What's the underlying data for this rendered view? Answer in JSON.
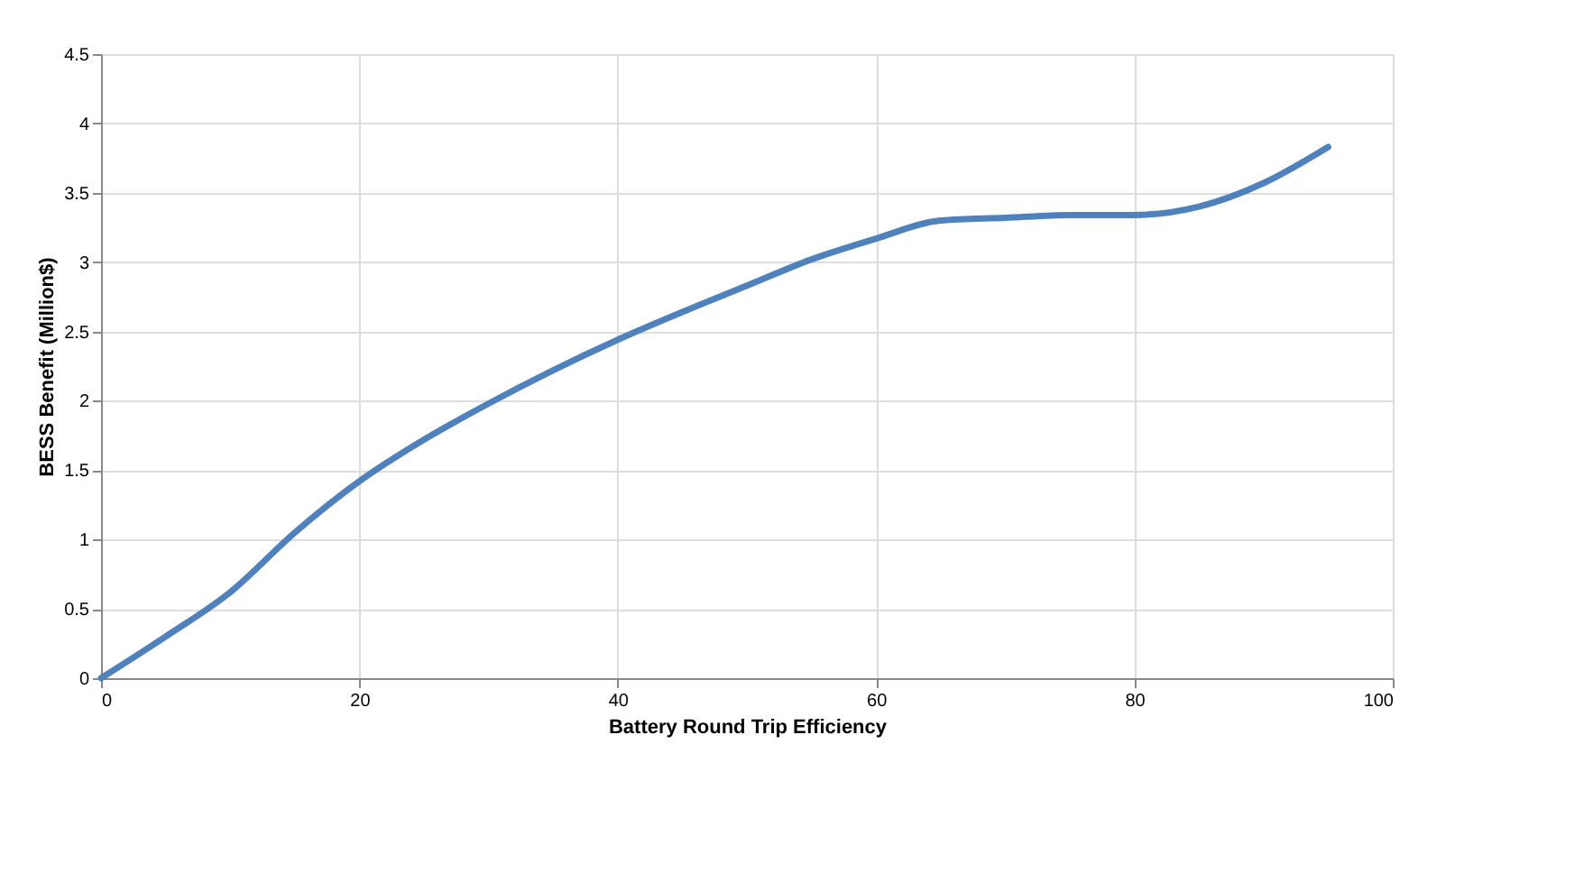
{
  "chart_data": {
    "type": "line",
    "xlabel": "Battery Round Trip Efficiency",
    "ylabel": "BESS Benefit (Million$)",
    "x": [
      0,
      5,
      10,
      15,
      20,
      25,
      30,
      35,
      40,
      45,
      50,
      55,
      60,
      65,
      70,
      75,
      80,
      85,
      90,
      95
    ],
    "series": [
      {
        "color": "#4f81bd",
        "values": [
          0,
          0.3,
          0.62,
          1.05,
          1.42,
          1.72,
          1.98,
          2.22,
          2.44,
          2.64,
          2.83,
          3.02,
          3.17,
          3.3,
          3.32,
          3.34,
          3.34,
          3.4,
          3.57,
          3.83
        ]
      }
    ],
    "xlim": [
      0,
      100
    ],
    "xticks": [
      0,
      20,
      40,
      60,
      80,
      100
    ],
    "ylim": [
      0,
      4.5
    ],
    "yticks": [
      0,
      0.5,
      1,
      1.5,
      2,
      2.5,
      3,
      3.5,
      4,
      4.5
    ],
    "grid": true,
    "marker": "none",
    "line_style": "solid",
    "legend": false
  }
}
